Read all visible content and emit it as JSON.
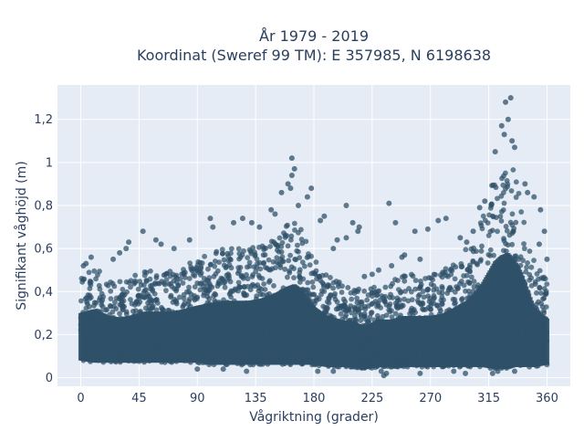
{
  "chart_data": {
    "type": "scatter",
    "title": [
      "År 1979 - 2019",
      "Koordinat (Sweref 99 TM): E 357985, N 6198638"
    ],
    "xlabel": "Vågriktning (grader)",
    "ylabel": "Signifikant våghöjd (m)",
    "xlim": [
      -18,
      378
    ],
    "ylim": [
      -0.04,
      1.36
    ],
    "xticks": [
      0,
      45,
      90,
      135,
      180,
      225,
      270,
      315,
      360
    ],
    "xtick_labels": [
      "0",
      "45",
      "90",
      "135",
      "180",
      "225",
      "270",
      "315",
      "360"
    ],
    "yticks": [
      0,
      0.2,
      0.4,
      0.6,
      0.8,
      1.0,
      1.2
    ],
    "ytick_labels": [
      "0",
      "0,2",
      "0,4",
      "0,6",
      "0,8",
      "1",
      "1,2"
    ],
    "grid": true,
    "marker_color": "#2f5168",
    "plot_background": "#e5ecf6",
    "envelope": {
      "x": [
        0,
        10,
        20,
        30,
        40,
        50,
        60,
        70,
        80,
        90,
        100,
        110,
        120,
        130,
        140,
        150,
        160,
        165,
        170,
        180,
        190,
        200,
        210,
        220,
        230,
        240,
        250,
        260,
        270,
        280,
        290,
        300,
        310,
        320,
        325,
        330,
        335,
        340,
        345,
        350,
        360
      ],
      "y_low": [
        0.08,
        0.07,
        0.07,
        0.07,
        0.07,
        0.07,
        0.07,
        0.07,
        0.07,
        0.07,
        0.06,
        0.06,
        0.06,
        0.06,
        0.06,
        0.06,
        0.06,
        0.06,
        0.06,
        0.06,
        0.05,
        0.05,
        0.05,
        0.04,
        0.05,
        0.05,
        0.05,
        0.05,
        0.05,
        0.05,
        0.05,
        0.05,
        0.05,
        0.04,
        0.04,
        0.04,
        0.05,
        0.05,
        0.05,
        0.05,
        0.06
      ],
      "y_high": [
        0.48,
        0.52,
        0.47,
        0.45,
        0.47,
        0.5,
        0.5,
        0.5,
        0.52,
        0.55,
        0.58,
        0.6,
        0.6,
        0.6,
        0.62,
        0.66,
        0.72,
        0.74,
        0.7,
        0.55,
        0.48,
        0.45,
        0.43,
        0.4,
        0.45,
        0.45,
        0.48,
        0.48,
        0.48,
        0.5,
        0.55,
        0.62,
        0.75,
        0.95,
        1.0,
        1.02,
        0.95,
        0.85,
        0.7,
        0.55,
        0.45
      ]
    },
    "outliers": [
      {
        "x": 332,
        "y": 1.3
      },
      {
        "x": 328,
        "y": 1.28
      },
      {
        "x": 330,
        "y": 1.2
      },
      {
        "x": 325,
        "y": 1.17
      },
      {
        "x": 327,
        "y": 1.13
      },
      {
        "x": 333,
        "y": 1.1
      },
      {
        "x": 320,
        "y": 1.05
      },
      {
        "x": 335,
        "y": 1.07
      },
      {
        "x": 163,
        "y": 1.02
      },
      {
        "x": 165,
        "y": 0.97
      },
      {
        "x": 163,
        "y": 0.94
      },
      {
        "x": 160,
        "y": 0.9
      },
      {
        "x": 162,
        "y": 0.88
      },
      {
        "x": 178,
        "y": 0.88
      },
      {
        "x": 155,
        "y": 0.86
      },
      {
        "x": 175,
        "y": 0.84
      },
      {
        "x": 168,
        "y": 0.8
      },
      {
        "x": 205,
        "y": 0.8
      },
      {
        "x": 238,
        "y": 0.81
      },
      {
        "x": 312,
        "y": 0.82
      },
      {
        "x": 308,
        "y": 0.79
      },
      {
        "x": 317,
        "y": 0.8
      },
      {
        "x": 345,
        "y": 0.86
      },
      {
        "x": 350,
        "y": 0.84
      },
      {
        "x": 343,
        "y": 0.9
      },
      {
        "x": 355,
        "y": 0.78
      },
      {
        "x": 147,
        "y": 0.78
      },
      {
        "x": 150,
        "y": 0.76
      },
      {
        "x": 188,
        "y": 0.75
      },
      {
        "x": 185,
        "y": 0.73
      },
      {
        "x": 210,
        "y": 0.72
      },
      {
        "x": 215,
        "y": 0.7
      },
      {
        "x": 243,
        "y": 0.72
      },
      {
        "x": 214,
        "y": 0.68
      },
      {
        "x": 282,
        "y": 0.74
      },
      {
        "x": 276,
        "y": 0.73
      },
      {
        "x": 268,
        "y": 0.69
      },
      {
        "x": 258,
        "y": 0.68
      },
      {
        "x": 100,
        "y": 0.74
      },
      {
        "x": 102,
        "y": 0.7
      },
      {
        "x": 118,
        "y": 0.72
      },
      {
        "x": 125,
        "y": 0.74
      },
      {
        "x": 132,
        "y": 0.72
      },
      {
        "x": 138,
        "y": 0.7
      },
      {
        "x": 48,
        "y": 0.68
      },
      {
        "x": 35,
        "y": 0.6
      },
      {
        "x": 37,
        "y": 0.63
      },
      {
        "x": 30,
        "y": 0.58
      },
      {
        "x": 58,
        "y": 0.64
      },
      {
        "x": 62,
        "y": 0.62
      },
      {
        "x": 72,
        "y": 0.6
      },
      {
        "x": 84,
        "y": 0.64
      },
      {
        "x": 25,
        "y": 0.55
      },
      {
        "x": 8,
        "y": 0.56
      },
      {
        "x": 4,
        "y": 0.53
      },
      {
        "x": 2,
        "y": 0.52
      },
      {
        "x": 198,
        "y": 0.64
      },
      {
        "x": 205,
        "y": 0.65
      },
      {
        "x": 195,
        "y": 0.6
      },
      {
        "x": 250,
        "y": 0.57
      },
      {
        "x": 248,
        "y": 0.56
      },
      {
        "x": 262,
        "y": 0.55
      },
      {
        "x": 293,
        "y": 0.65
      },
      {
        "x": 298,
        "y": 0.63
      },
      {
        "x": 303,
        "y": 0.68
      },
      {
        "x": 358,
        "y": 0.68
      },
      {
        "x": 354,
        "y": 0.62
      },
      {
        "x": 360,
        "y": 0.55
      },
      {
        "x": 230,
        "y": 0.5
      },
      {
        "x": 240,
        "y": 0.52
      },
      {
        "x": 225,
        "y": 0.48
      },
      {
        "x": 219,
        "y": 0.47
      },
      {
        "x": 232,
        "y": 0.03
      },
      {
        "x": 234,
        "y": 0.01
      },
      {
        "x": 236,
        "y": 0.02
      },
      {
        "x": 262,
        "y": 0.02
      },
      {
        "x": 288,
        "y": 0.03
      },
      {
        "x": 297,
        "y": 0.02
      },
      {
        "x": 318,
        "y": 0.02
      },
      {
        "x": 322,
        "y": 0.03
      },
      {
        "x": 195,
        "y": 0.03
      },
      {
        "x": 183,
        "y": 0.03
      },
      {
        "x": 128,
        "y": 0.03
      },
      {
        "x": 110,
        "y": 0.04
      },
      {
        "x": 90,
        "y": 0.04
      },
      {
        "x": 335,
        "y": 0.03
      }
    ]
  }
}
